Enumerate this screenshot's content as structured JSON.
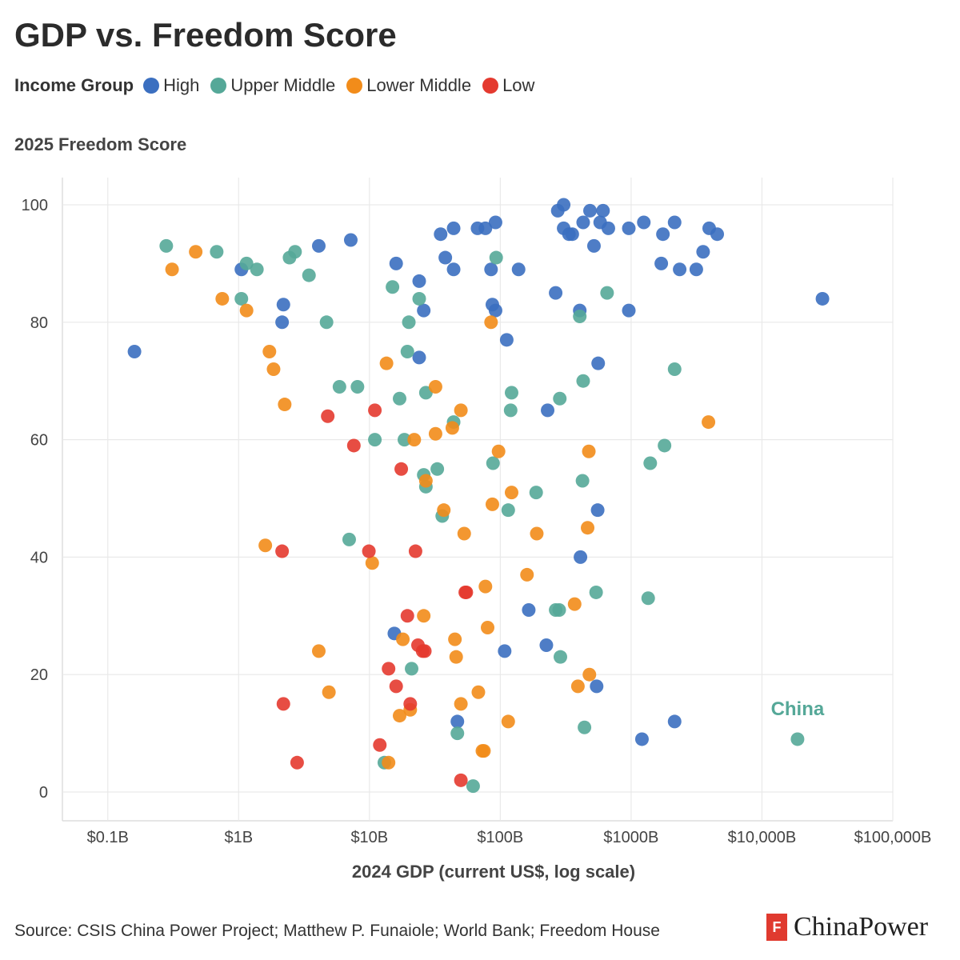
{
  "title": "GDP vs. Freedom Score",
  "legend": {
    "title": "Income Group",
    "items": [
      {
        "label": "High",
        "color": "#3b6fc0"
      },
      {
        "label": "Upper Middle",
        "color": "#55a898"
      },
      {
        "label": "Lower Middle",
        "color": "#f28c1a"
      },
      {
        "label": "Low",
        "color": "#e43a2f"
      }
    ]
  },
  "source": "Source: CSIS China Power Project; Matthew P. Funaiole; World Bank; Freedom House",
  "brand": {
    "name": "ChinaPower",
    "mark": "F"
  },
  "chart_data": {
    "type": "scatter",
    "title": "GDP vs. Freedom Score",
    "xlabel": "2024 GDP (current US$, log scale)",
    "ylabel": "2025 Freedom Score",
    "x_scale": "log",
    "x_unit": "billion US$",
    "xlim": [
      0.045,
      100000
    ],
    "ylim": [
      0,
      100
    ],
    "x_ticks": [
      {
        "value": 0.1,
        "label": "$0.1B"
      },
      {
        "value": 1,
        "label": "$1B"
      },
      {
        "value": 10,
        "label": "$10B"
      },
      {
        "value": 100,
        "label": "$100B"
      },
      {
        "value": 1000,
        "label": "$1000B"
      },
      {
        "value": 10000,
        "label": "$10,000B"
      },
      {
        "value": 100000,
        "label": "$100,000B"
      }
    ],
    "y_ticks": [
      0,
      20,
      40,
      60,
      80,
      100
    ],
    "grid": true,
    "legend_position": "top-left",
    "annotations": [
      {
        "text": "China",
        "x": 18700,
        "y": 9,
        "color": "#55a898"
      }
    ],
    "series": [
      {
        "name": "High",
        "color": "#3b6fc0",
        "points": [
          [
            0.16,
            75
          ],
          [
            1.05,
            89
          ],
          [
            2.2,
            83
          ],
          [
            2.15,
            80
          ],
          [
            4.1,
            93
          ],
          [
            7.2,
            94
          ],
          [
            16,
            90
          ],
          [
            24,
            87
          ],
          [
            26,
            82
          ],
          [
            24,
            74
          ],
          [
            35,
            95
          ],
          [
            38,
            91
          ],
          [
            44,
            96
          ],
          [
            44,
            89
          ],
          [
            67,
            96
          ],
          [
            77,
            96
          ],
          [
            92,
            97
          ],
          [
            85,
            89
          ],
          [
            87,
            83
          ],
          [
            92,
            82
          ],
          [
            112,
            77
          ],
          [
            138,
            89
          ],
          [
            275,
            99
          ],
          [
            305,
            100
          ],
          [
            305,
            96
          ],
          [
            335,
            95
          ],
          [
            355,
            95
          ],
          [
            430,
            97
          ],
          [
            485,
            99
          ],
          [
            520,
            93
          ],
          [
            580,
            97
          ],
          [
            610,
            99
          ],
          [
            670,
            96
          ],
          [
            960,
            96
          ],
          [
            960,
            82
          ],
          [
            1250,
            97
          ],
          [
            1750,
            95
          ],
          [
            1700,
            90
          ],
          [
            2150,
            97
          ],
          [
            2350,
            89
          ],
          [
            3150,
            89
          ],
          [
            3550,
            92
          ],
          [
            3950,
            96
          ],
          [
            4550,
            95
          ],
          [
            29000,
            84
          ],
          [
            265,
            85
          ],
          [
            405,
            82
          ],
          [
            560,
            73
          ],
          [
            230,
            65
          ],
          [
            555,
            48
          ],
          [
            410,
            40
          ],
          [
            165,
            31
          ],
          [
            225,
            25
          ],
          [
            108,
            24
          ],
          [
            545,
            18
          ],
          [
            1210,
            9
          ],
          [
            2150,
            12
          ],
          [
            47,
            12
          ],
          [
            15.5,
            27
          ]
        ]
      },
      {
        "name": "Upper Middle",
        "color": "#55a898",
        "points": [
          [
            0.28,
            93
          ],
          [
            0.68,
            92
          ],
          [
            1.15,
            90
          ],
          [
            1.05,
            84
          ],
          [
            1.38,
            89
          ],
          [
            2.45,
            91
          ],
          [
            2.7,
            92
          ],
          [
            3.45,
            88
          ],
          [
            4.7,
            80
          ],
          [
            5.9,
            69
          ],
          [
            8.1,
            69
          ],
          [
            11,
            60
          ],
          [
            15,
            86
          ],
          [
            17,
            67
          ],
          [
            18.5,
            60
          ],
          [
            20,
            80
          ],
          [
            19.5,
            75
          ],
          [
            24,
            84
          ],
          [
            27,
            68
          ],
          [
            27,
            52
          ],
          [
            26,
            54
          ],
          [
            33,
            55
          ],
          [
            36,
            47
          ],
          [
            44,
            63
          ],
          [
            93,
            91
          ],
          [
            88,
            56
          ],
          [
            115,
            48
          ],
          [
            120,
            65
          ],
          [
            122,
            68
          ],
          [
            188,
            51
          ],
          [
            285,
            67
          ],
          [
            265,
            31
          ],
          [
            282,
            31
          ],
          [
            288,
            23
          ],
          [
            405,
            81
          ],
          [
            430,
            70
          ],
          [
            425,
            53
          ],
          [
            440,
            11
          ],
          [
            540,
            34
          ],
          [
            655,
            85
          ],
          [
            1350,
            33
          ],
          [
            1400,
            56
          ],
          [
            1800,
            59
          ],
          [
            2150,
            72
          ],
          [
            18700,
            9
          ],
          [
            7,
            43
          ],
          [
            21,
            21
          ],
          [
            47,
            10
          ],
          [
            62,
            1
          ],
          [
            13,
            5
          ]
        ]
      },
      {
        "name": "Lower Middle",
        "color": "#f28c1a",
        "points": [
          [
            0.31,
            89
          ],
          [
            0.47,
            92
          ],
          [
            0.75,
            84
          ],
          [
            1.15,
            82
          ],
          [
            1.72,
            75
          ],
          [
            1.85,
            72
          ],
          [
            2.25,
            66
          ],
          [
            1.6,
            42
          ],
          [
            4.1,
            24
          ],
          [
            4.9,
            17
          ],
          [
            10.5,
            39
          ],
          [
            13.5,
            73
          ],
          [
            14,
            5
          ],
          [
            17,
            13
          ],
          [
            18,
            26
          ],
          [
            20.5,
            14
          ],
          [
            22,
            60
          ],
          [
            26,
            30
          ],
          [
            27,
            53
          ],
          [
            32,
            69
          ],
          [
            32,
            61
          ],
          [
            43,
            62
          ],
          [
            45,
            26
          ],
          [
            46,
            23
          ],
          [
            50,
            65
          ],
          [
            50,
            15
          ],
          [
            53,
            44
          ],
          [
            37,
            48
          ],
          [
            68,
            17
          ],
          [
            73,
            7
          ],
          [
            75,
            7
          ],
          [
            77,
            35
          ],
          [
            80,
            28
          ],
          [
            85,
            80
          ],
          [
            87,
            49
          ],
          [
            97,
            58
          ],
          [
            115,
            12
          ],
          [
            122,
            51
          ],
          [
            190,
            44
          ],
          [
            160,
            37
          ],
          [
            370,
            32
          ],
          [
            392,
            18
          ],
          [
            465,
            45
          ],
          [
            475,
            58
          ],
          [
            480,
            20
          ],
          [
            3900,
            63
          ]
        ]
      },
      {
        "name": "Low",
        "color": "#e43a2f",
        "points": [
          [
            2.15,
            41
          ],
          [
            2.2,
            15
          ],
          [
            2.8,
            5
          ],
          [
            4.8,
            64
          ],
          [
            7.6,
            59
          ],
          [
            9.9,
            41
          ],
          [
            11,
            65
          ],
          [
            12,
            8
          ],
          [
            14,
            21
          ],
          [
            16,
            18
          ],
          [
            17.5,
            55
          ],
          [
            19.5,
            30
          ],
          [
            20.5,
            15
          ],
          [
            22.5,
            41
          ],
          [
            23.5,
            25
          ],
          [
            25.5,
            24
          ],
          [
            26.5,
            24
          ],
          [
            50,
            2
          ],
          [
            55,
            34
          ],
          [
            54,
            34
          ]
        ]
      }
    ]
  }
}
